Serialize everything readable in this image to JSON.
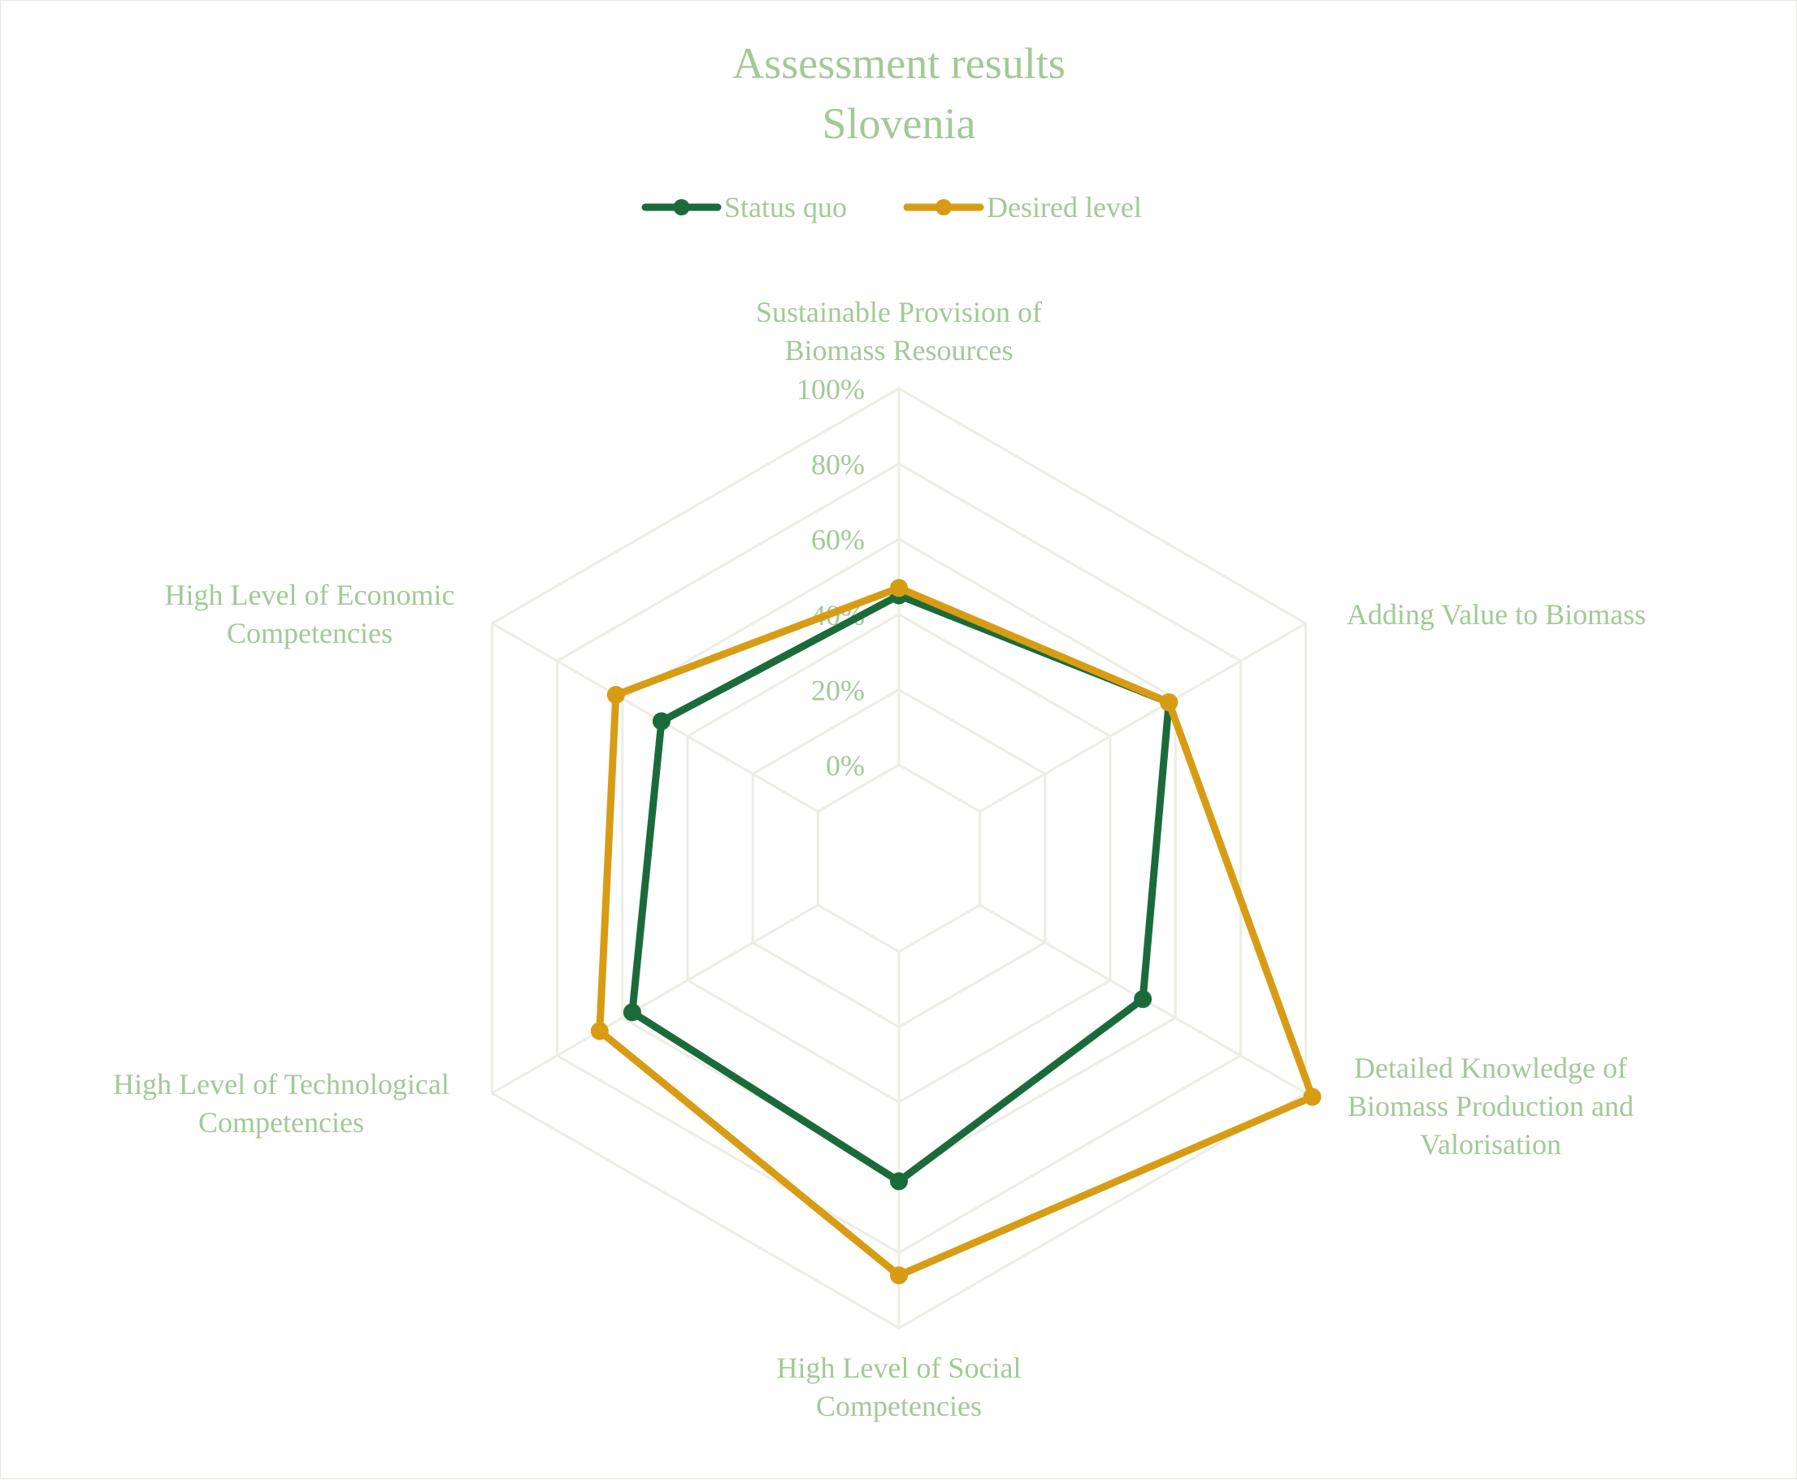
{
  "chart_data": {
    "type": "radar",
    "title": [
      "Assessment results",
      "Slovenia"
    ],
    "axes": [
      [
        "Sustainable Provision of",
        "Biomass Resources"
      ],
      [
        "Adding Value to Biomass"
      ],
      [
        "Detailed Knowledge of",
        "Biomass Production and",
        "Valorisation"
      ],
      [
        "High Level of Social",
        "Competencies"
      ],
      [
        "High Level of Technological",
        "Competencies"
      ],
      [
        "High Level of Economic",
        "Competencies"
      ]
    ],
    "ticks": [
      "0%",
      "20%",
      "40%",
      "60%",
      "80%",
      "100%"
    ],
    "range": [
      0,
      100
    ],
    "grid": true,
    "legend_position": "top",
    "series": [
      {
        "name": "Status quo",
        "color": "#1b6b3a",
        "values": [
          45,
          58,
          50,
          61,
          57,
          48
        ]
      },
      {
        "name": "Desired level",
        "color": "#d89c14",
        "values": [
          47,
          58,
          102,
          86,
          67,
          62
        ]
      }
    ]
  }
}
